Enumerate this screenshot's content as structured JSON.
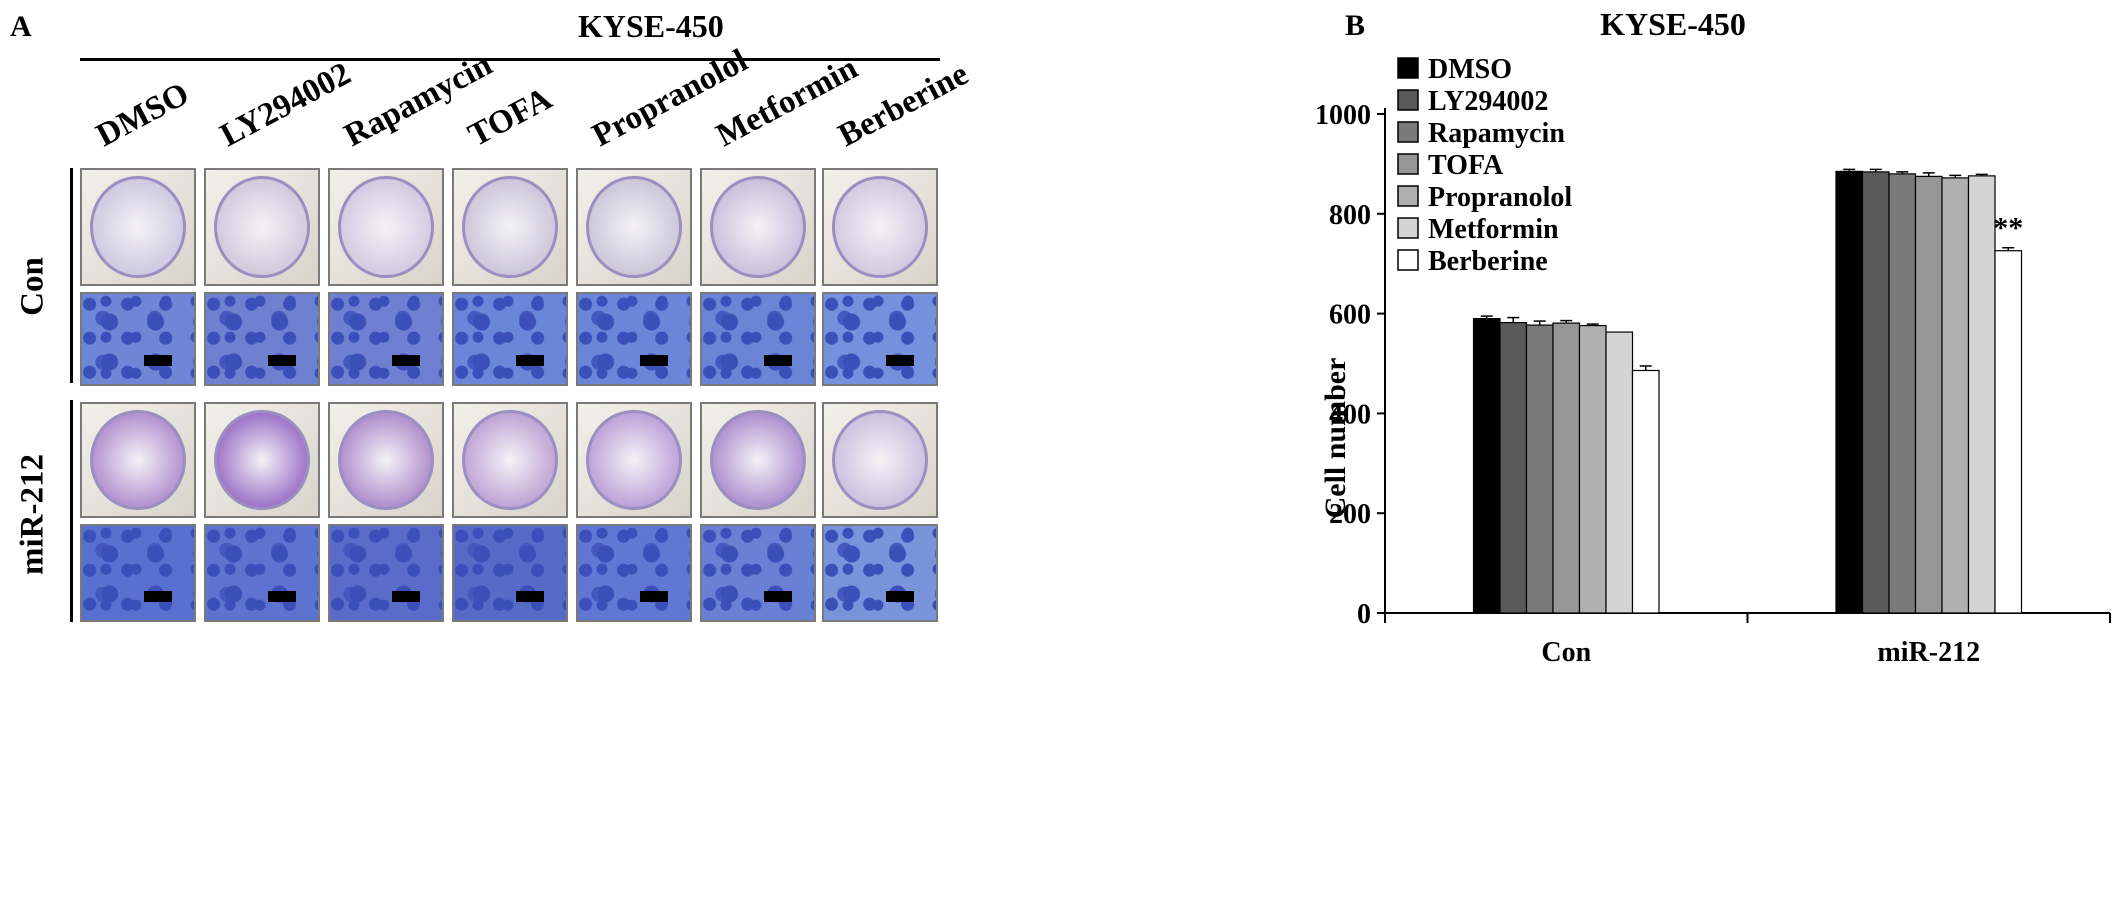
{
  "panel_a": {
    "panel_label": "A",
    "title": "KYSE-450",
    "columns": [
      "DMSO",
      "LY294002",
      "Rapamycin",
      "TOFA",
      "Propranolol",
      "Metformin",
      "Berberine"
    ],
    "rows": [
      "Con",
      "miR-212"
    ],
    "dish_tints_con": [
      "#c7c2dc",
      "#c9c3d8",
      "#cbc4de",
      "#c4bfd6",
      "#c3bfd4",
      "#c0b8d8",
      "#cac3dc"
    ],
    "dish_tints_mir": [
      "#a77fc8",
      "#8d5cc0",
      "#a47cc6",
      "#b596cf",
      "#b294d3",
      "#a27ec9",
      "#c4b9da"
    ],
    "micro_tints_con": [
      "#6f86d6",
      "#6e80d0",
      "#6f80d2",
      "#6986d8",
      "#6a86d8",
      "#6a84d6",
      "#7590dc"
    ],
    "micro_tints_mir": [
      "#5a70d0",
      "#5e72d0",
      "#5a6cca",
      "#566ac8",
      "#6078d4",
      "#6a80d4",
      "#7a94dc"
    ]
  },
  "chart_data": {
    "panel_label": "B",
    "type": "bar",
    "title": "KYSE-450",
    "ylabel": "Cell number",
    "xlabel": "",
    "ylim": [
      0,
      1000
    ],
    "yticks": [
      0,
      200,
      400,
      600,
      800,
      1000
    ],
    "categories": [
      "Con",
      "miR-212"
    ],
    "legend_position": "top-left",
    "grid": false,
    "series": [
      {
        "name": "DMSO",
        "values": [
          590,
          885
        ],
        "errors": [
          5,
          4
        ],
        "color": "#000000"
      },
      {
        "name": "LY294002",
        "values": [
          582,
          884
        ],
        "errors": [
          10,
          5
        ],
        "color": "#595959"
      },
      {
        "name": "Rapamycin",
        "values": [
          577,
          880
        ],
        "errors": [
          8,
          4
        ],
        "color": "#7a7a7a"
      },
      {
        "name": "TOFA",
        "values": [
          581,
          875
        ],
        "errors": [
          5,
          7
        ],
        "color": "#969696"
      },
      {
        "name": "Propranolol",
        "values": [
          576,
          872
        ],
        "errors": [
          3,
          5
        ],
        "color": "#b0b0b0"
      },
      {
        "name": "Metformin",
        "values": [
          563,
          876
        ],
        "errors": [
          0,
          3
        ],
        "color": "#d4d4d4"
      },
      {
        "name": "Berberine",
        "values": [
          486,
          726
        ],
        "errors": [
          9,
          6
        ],
        "color": "#ffffff"
      }
    ],
    "annotations": [
      {
        "text": "**",
        "category": "miR-212",
        "series": "Berberine"
      }
    ]
  }
}
